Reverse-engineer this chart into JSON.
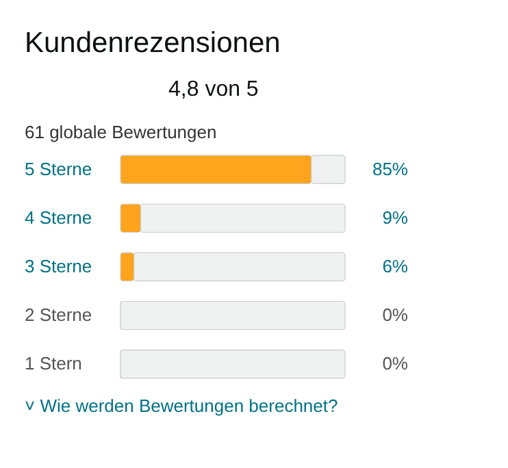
{
  "chart_data": {
    "type": "bar",
    "orientation": "horizontal",
    "stacked": true,
    "title": "Kundenrezensionen",
    "subtitle": "4,8 von 5",
    "categories": [
      "5 Sterne",
      "4 Sterne",
      "3 Sterne",
      "2 Sterne",
      "1 Stern"
    ],
    "series": [
      {
        "color": "#ffa41c",
        "values": [
          85,
          9,
          6,
          0,
          0
        ],
        "value_labels": [
          "85%",
          "9%",
          "6%",
          "0%",
          "0%"
        ]
      },
      {
        "color": "#f0f2f2",
        "values": [
          15,
          91,
          94,
          100,
          100
        ]
      }
    ],
    "xlim": [
      0,
      100
    ],
    "tick_labels": false,
    "annotations": [
      "61 globale Bewertungen",
      "˅ Wie werden Bewertungen berechnet?"
    ]
  }
}
